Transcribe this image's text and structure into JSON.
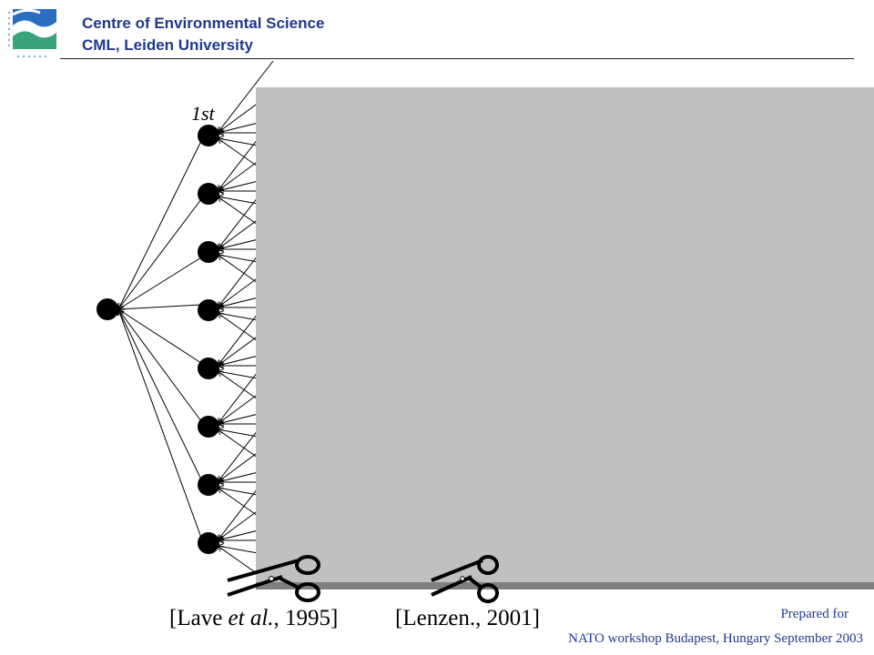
{
  "header": {
    "org_line1": "Centre of Environmental Science",
    "org_line2": "CML, Leiden University"
  },
  "diagram": {
    "stage_label": "1st",
    "source_node_count": 1,
    "first_tier_node_count": 8,
    "panel_color": "#c0c0c0",
    "edge_color": "#000000",
    "node_color": "#000000"
  },
  "citations": {
    "left": {
      "pre": "[Lave ",
      "italic": "et al.",
      "post": ", 1995]"
    },
    "right": {
      "text": "[Lenzen., 2001]"
    }
  },
  "footer": {
    "line1": "Prepared for",
    "line2": "NATO workshop Budapest, Hungary September 2003"
  },
  "icons": [
    "cml-logo-icon",
    "scissors-icon",
    "scissors-icon"
  ],
  "colors": {
    "brand": "#1f3a8c",
    "logo_teal": "#3aa37c",
    "logo_blue": "#2a6fbf"
  }
}
